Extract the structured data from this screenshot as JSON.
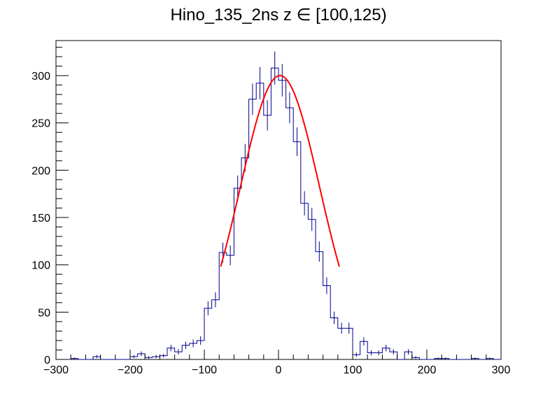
{
  "chart_data": {
    "type": "histogram",
    "title": "Hino_135_2ns z  ∈ [100,125)",
    "xlabel": "",
    "ylabel": "",
    "xlim": [
      -300,
      300
    ],
    "ylim": [
      0,
      337
    ],
    "x_ticks": [
      -300,
      -200,
      -100,
      0,
      100,
      200,
      300
    ],
    "y_ticks": [
      0,
      50,
      100,
      150,
      200,
      250,
      300
    ],
    "bin_width": 10,
    "bin_low_edges": [
      -300,
      -290,
      -280,
      -270,
      -260,
      -250,
      -240,
      -230,
      -220,
      -210,
      -200,
      -190,
      -180,
      -170,
      -160,
      -150,
      -140,
      -130,
      -120,
      -110,
      -100,
      -90,
      -80,
      -70,
      -60,
      -50,
      -40,
      -30,
      -20,
      -10,
      0,
      10,
      20,
      30,
      40,
      50,
      60,
      70,
      80,
      90,
      100,
      110,
      120,
      130,
      140,
      150,
      160,
      170,
      180,
      190,
      200,
      210,
      220,
      230,
      240,
      250,
      260,
      270,
      280,
      290
    ],
    "counts": [
      0,
      0,
      1,
      0,
      0,
      3,
      0,
      0,
      0,
      0,
      3,
      6,
      2,
      3,
      4,
      12,
      8,
      15,
      17,
      20,
      54,
      63,
      113,
      110,
      181,
      213,
      275,
      292,
      258,
      308,
      295,
      266,
      230,
      165,
      148,
      114,
      78,
      44,
      33,
      33,
      5,
      19,
      7,
      7,
      12,
      8,
      0,
      8,
      2,
      0,
      0,
      1,
      1,
      0,
      0,
      0,
      1,
      0,
      1,
      0
    ],
    "series": [
      {
        "name": "",
        "color": "#00008b"
      }
    ],
    "fit": {
      "type": "gaussian",
      "color": "#ff0000",
      "amplitude": 300,
      "mean": 2,
      "sigma": 53.5,
      "x_range": [
        -78,
        82
      ]
    },
    "grid": false,
    "legend": "none"
  }
}
